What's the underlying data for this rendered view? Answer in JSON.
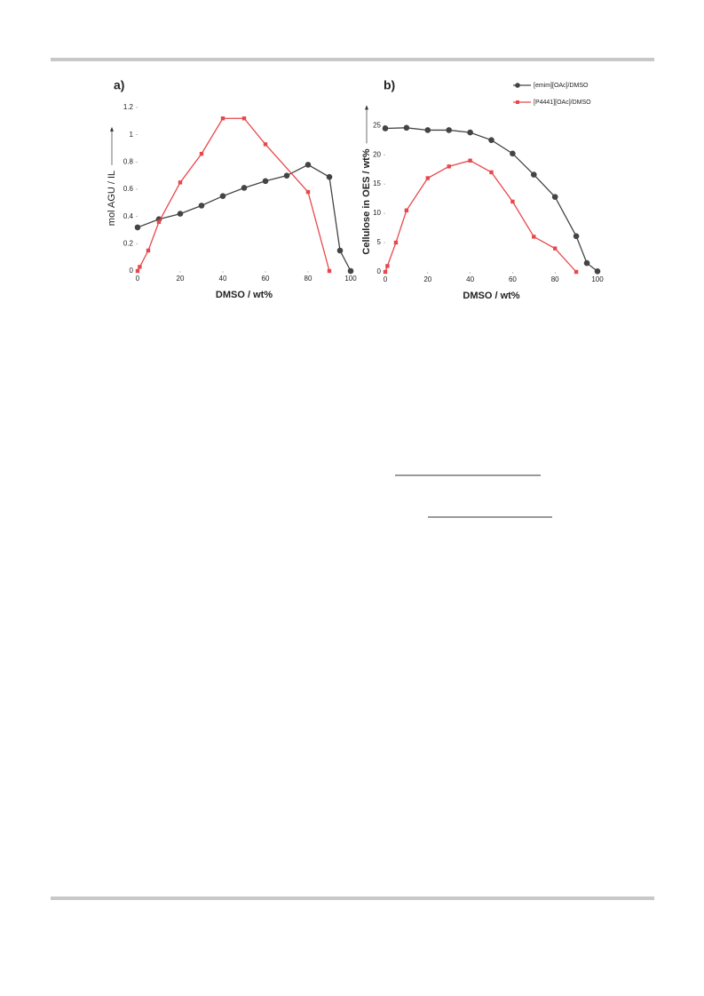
{
  "chart_data": [
    {
      "type": "line",
      "title": "a)",
      "xlabel": "DMSO / wt%",
      "ylabel": "mol AGU / IL",
      "xlim": [
        0,
        100
      ],
      "xticks": [
        0,
        20,
        40,
        60,
        80,
        100
      ],
      "ylim": [
        0,
        1.2
      ],
      "yticks": [
        0,
        0.2,
        0.4,
        0.6,
        0.8,
        1,
        1.2
      ],
      "legend": false,
      "series": [
        {
          "color": "#444444",
          "marker": "circle",
          "x": [
            0,
            10,
            20,
            30,
            40,
            50,
            60,
            70,
            80,
            90,
            95,
            100
          ],
          "values": [
            0.32,
            0.38,
            0.42,
            0.48,
            0.55,
            0.61,
            0.66,
            0.7,
            0.78,
            0.69,
            0.15,
            0
          ]
        },
        {
          "color": "#e8474c",
          "marker": "square",
          "x": [
            0,
            1,
            5,
            10,
            20,
            30,
            40,
            50,
            60,
            80,
            90
          ],
          "values": [
            0,
            0.03,
            0.15,
            0.36,
            0.65,
            0.86,
            1.12,
            1.12,
            0.93,
            0.58,
            0
          ]
        }
      ]
    },
    {
      "type": "line",
      "title": "b)",
      "xlabel": "DMSO / wt%",
      "ylabel": "Cellulose in OES / wt%",
      "xlim": [
        0,
        100
      ],
      "xticks": [
        0,
        20,
        40,
        60,
        80,
        100
      ],
      "ylim": [
        0,
        27
      ],
      "yticks": [
        0,
        5,
        10,
        15,
        20,
        25
      ],
      "legend": true,
      "series": [
        {
          "name": "[emim][OAc]/DMSO",
          "color": "#444444",
          "marker": "circle",
          "x": [
            0,
            10,
            20,
            30,
            40,
            50,
            60,
            70,
            80,
            90,
            95,
            100
          ],
          "values": [
            24.5,
            24.6,
            24.2,
            24.2,
            23.8,
            22.5,
            20.2,
            16.6,
            12.8,
            6.1,
            1.5,
            0.1
          ]
        },
        {
          "name": "[P4441][OAc]/DMSO",
          "color": "#e8474c",
          "marker": "square",
          "x": [
            0,
            1,
            5,
            10,
            20,
            30,
            40,
            50,
            60,
            70,
            80,
            90
          ],
          "values": [
            0,
            1,
            5,
            10.5,
            16,
            18,
            19,
            17,
            12,
            6,
            4,
            0
          ]
        }
      ]
    }
  ]
}
